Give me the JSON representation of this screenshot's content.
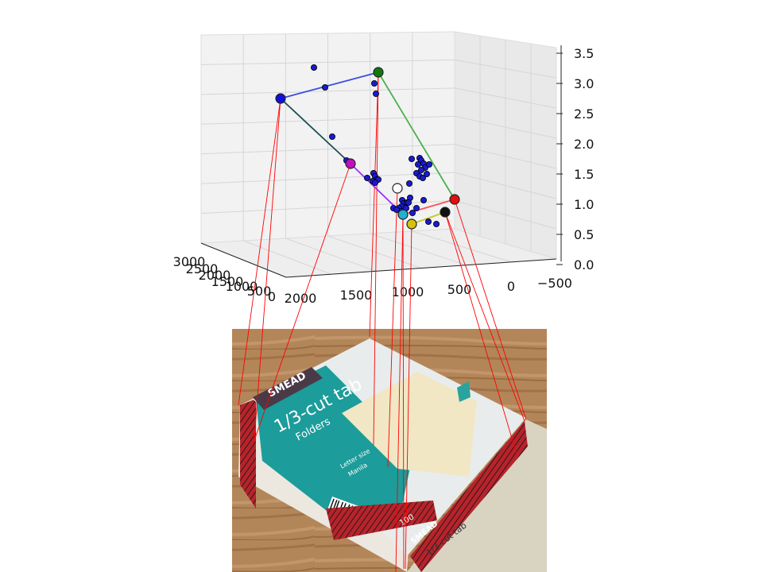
{
  "chart_data": {
    "type": "scatter",
    "projection": "3d",
    "grid": true,
    "z_ticks": [
      "3.5",
      "3.0",
      "2.5",
      "2.0",
      "1.5",
      "1.0",
      "0.5",
      "0.0"
    ],
    "x_ticks": [
      "2000",
      "1500",
      "1000",
      "500",
      "0",
      "−500"
    ],
    "y_ticks": [
      "3000",
      "2500",
      "2000",
      "1500",
      "1000",
      "500",
      "0"
    ],
    "keypoints": [
      {
        "label": "blue",
        "color": "#1010e0"
      },
      {
        "label": "green",
        "color": "#107810"
      },
      {
        "label": "red",
        "color": "#e01010"
      },
      {
        "label": "black",
        "color": "#111111"
      },
      {
        "label": "yellow",
        "color": "#d8c010"
      },
      {
        "label": "cyan",
        "color": "#20b0d0"
      },
      {
        "label": "white",
        "color": "#ffffff"
      },
      {
        "label": "magenta",
        "color": "#c010c0"
      }
    ],
    "edges": [
      {
        "from": "blue",
        "to": "green",
        "color": "#3b4fe0"
      },
      {
        "from": "green",
        "to": "red",
        "color": "#4caf50"
      },
      {
        "from": "red",
        "to": "cyan",
        "color": "#ff5050"
      },
      {
        "from": "cyan",
        "to": "magenta",
        "color": "#9b30ff"
      },
      {
        "from": "magenta",
        "to": "blue",
        "color": "#1e5050"
      },
      {
        "from": "black",
        "to": "yellow",
        "color": "#c8c820"
      }
    ],
    "correspondence_line_color": "#ff0000"
  },
  "photo": {
    "brand": "SMEAD",
    "title": "1/3-cut tab",
    "subtitle": "Folders",
    "size": "Letter size",
    "color": "Manila",
    "count": "100",
    "bottom_brand": "SMEAD",
    "bottom_title": "1/3-cut tab"
  }
}
